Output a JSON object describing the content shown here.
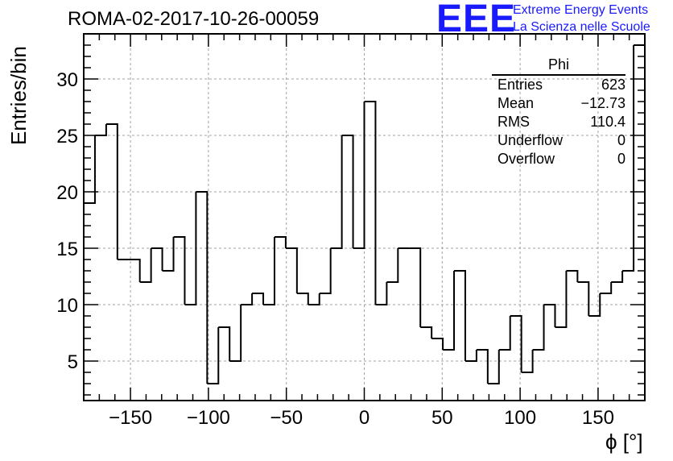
{
  "title": "ROMA-02-2017-10-26-00059",
  "logo": {
    "mark": "EEE",
    "line1": "Extreme Energy Events",
    "line2": "La Scienza nelle Scuole",
    "color": "#1a1aff"
  },
  "stats_box": {
    "name": "Phi",
    "rows": [
      {
        "label": "Entries",
        "value": "623"
      },
      {
        "label": "Mean",
        "value": "−12.73"
      },
      {
        "label": "RMS",
        "value": "110.4"
      },
      {
        "label": "Underflow",
        "value": "0"
      },
      {
        "label": "Overflow",
        "value": "0"
      }
    ]
  },
  "chart_data": {
    "type": "bar",
    "histogram": "step",
    "xlabel": "ϕ [°]",
    "ylabel": "Entries/bin",
    "xlim": [
      -180,
      180
    ],
    "ylim": [
      1.5,
      34
    ],
    "bin_width": 7.2,
    "bin_low_edges": [
      -180,
      -172.8,
      -165.6,
      -158.4,
      -151.2,
      -144,
      -136.8,
      -129.6,
      -122.4,
      -115.2,
      -108,
      -100.8,
      -93.6,
      -86.4,
      -79.2,
      -72,
      -64.8,
      -57.6,
      -50.4,
      -43.2,
      -36,
      -28.8,
      -21.6,
      -14.4,
      -7.2,
      0,
      7.2,
      14.4,
      21.6,
      28.8,
      36,
      43.2,
      50.4,
      57.6,
      64.8,
      72,
      79.2,
      86.4,
      93.6,
      100.8,
      108,
      115.2,
      122.4,
      129.6,
      136.8,
      144,
      151.2,
      158.4,
      165.6,
      172.8
    ],
    "values": [
      19,
      25,
      26,
      14,
      14,
      12,
      15,
      13,
      16,
      10,
      20,
      3,
      8,
      5,
      10,
      11,
      10,
      16,
      15,
      11,
      10,
      11,
      15,
      25,
      15,
      28,
      10,
      12,
      15,
      15,
      8,
      7,
      6,
      13,
      5,
      6,
      3,
      6,
      9,
      4,
      6,
      10,
      8,
      13,
      12,
      9,
      11,
      12,
      13,
      33
    ],
    "x_ticks": [
      -150,
      -100,
      -50,
      0,
      50,
      100,
      150
    ],
    "x_tick_labels": [
      "−150",
      "−100",
      "−50",
      "0",
      "50",
      "100",
      "150"
    ],
    "y_ticks": [
      5,
      10,
      15,
      20,
      25,
      30
    ],
    "y_tick_labels": [
      "5",
      "10",
      "15",
      "20",
      "25",
      "30"
    ],
    "grid": true,
    "line_color": "#000000",
    "grid_color": "#a0a0a0"
  }
}
